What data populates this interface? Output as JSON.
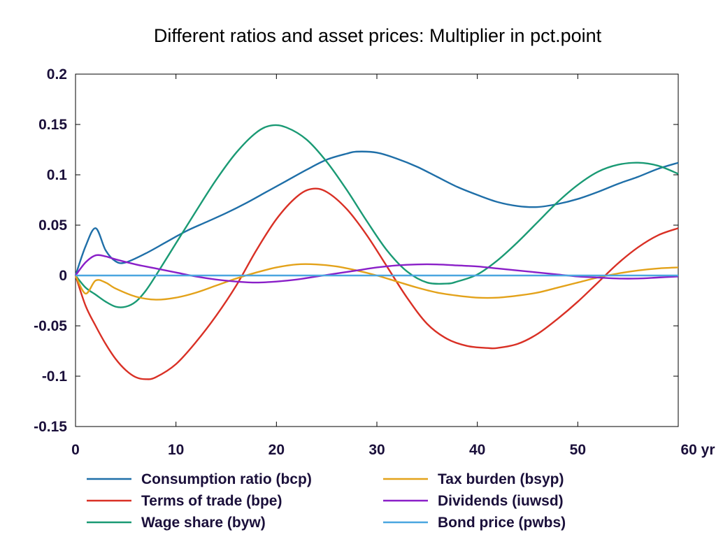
{
  "chart_data": {
    "type": "line",
    "title": "Different ratios and asset prices: Multiplier in pct.point",
    "xlabel": "",
    "ylabel": "",
    "xlim": [
      0,
      60
    ],
    "ylim": [
      -0.15,
      0.2
    ],
    "x_ticks": [
      0,
      10,
      20,
      30,
      40,
      50,
      60
    ],
    "x_tick_labels": [
      "0",
      "10",
      "20",
      "30",
      "40",
      "50",
      "60 yr"
    ],
    "y_ticks": [
      -0.15,
      -0.1,
      -0.05,
      0,
      0.05,
      0.1,
      0.15,
      0.2
    ],
    "y_tick_labels": [
      "-0.15",
      "-0.1",
      "-0.05",
      "0",
      "0.05",
      "0.1",
      "0.15",
      "0.2"
    ],
    "grid": false,
    "legend_position": "bottom",
    "series": [
      {
        "name": "Consumption ratio (bcp)",
        "color": "#1f6fa8",
        "x": [
          0,
          1,
          2,
          3,
          4,
          5,
          7,
          9,
          11,
          13,
          15,
          17,
          19,
          21,
          23,
          25,
          27,
          28,
          30,
          32,
          34,
          36,
          38,
          40,
          42,
          44,
          46,
          48,
          50,
          52,
          54,
          56,
          58,
          60
        ],
        "y": [
          0,
          0.029,
          0.047,
          0.025,
          0.014,
          0.013,
          0.022,
          0.033,
          0.044,
          0.053,
          0.062,
          0.072,
          0.083,
          0.094,
          0.105,
          0.115,
          0.121,
          0.123,
          0.122,
          0.116,
          0.108,
          0.098,
          0.088,
          0.08,
          0.073,
          0.069,
          0.068,
          0.071,
          0.076,
          0.083,
          0.091,
          0.098,
          0.106,
          0.112
        ]
      },
      {
        "name": "Terms of trade (bpe)",
        "color": "#d93025",
        "x": [
          0,
          1,
          2,
          3,
          4,
          5,
          6,
          7,
          8,
          10,
          12,
          14,
          16,
          18,
          20,
          22,
          23.5,
          25,
          27,
          29,
          31,
          33,
          35,
          37,
          39,
          41,
          42,
          44,
          46,
          48,
          50,
          52,
          54,
          56,
          58,
          60
        ],
        "y": [
          0,
          -0.03,
          -0.05,
          -0.068,
          -0.083,
          -0.094,
          -0.101,
          -0.103,
          -0.101,
          -0.088,
          -0.066,
          -0.04,
          -0.01,
          0.025,
          0.056,
          0.078,
          0.086,
          0.083,
          0.066,
          0.04,
          0.009,
          -0.022,
          -0.048,
          -0.063,
          -0.07,
          -0.072,
          -0.072,
          -0.068,
          -0.058,
          -0.043,
          -0.026,
          -0.007,
          0.012,
          0.028,
          0.04,
          0.047
        ]
      },
      {
        "name": "Wage share (byw)",
        "color": "#1a9a74",
        "x": [
          0,
          1,
          2,
          3,
          4,
          5,
          6,
          7,
          8,
          10,
          12,
          14,
          16,
          18,
          19.5,
          21,
          23,
          25,
          27,
          29,
          31,
          33,
          35,
          37,
          38,
          40,
          42,
          44,
          46,
          48,
          50,
          52,
          54,
          56,
          58,
          60
        ],
        "y": [
          0,
          -0.012,
          -0.019,
          -0.026,
          -0.031,
          -0.031,
          -0.026,
          -0.015,
          0.0,
          0.032,
          0.064,
          0.095,
          0.122,
          0.142,
          0.149,
          0.147,
          0.135,
          0.113,
          0.085,
          0.054,
          0.025,
          0.004,
          -0.007,
          -0.008,
          -0.006,
          0.001,
          0.015,
          0.033,
          0.053,
          0.073,
          0.09,
          0.103,
          0.11,
          0.112,
          0.109,
          0.101
        ]
      },
      {
        "name": "Tax burden (bsyp)",
        "color": "#e3a21a",
        "x": [
          0,
          1,
          2,
          3,
          4,
          6,
          8,
          10,
          12,
          14,
          16,
          18,
          20,
          22,
          24,
          26,
          28,
          30,
          32,
          34,
          36,
          38,
          40,
          42,
          44,
          46,
          48,
          50,
          52,
          54,
          56,
          58,
          60
        ],
        "y": [
          0,
          -0.018,
          -0.005,
          -0.007,
          -0.013,
          -0.021,
          -0.024,
          -0.022,
          -0.017,
          -0.01,
          -0.003,
          0.003,
          0.008,
          0.011,
          0.011,
          0.009,
          0.005,
          0.0,
          -0.006,
          -0.012,
          -0.017,
          -0.02,
          -0.022,
          -0.022,
          -0.02,
          -0.017,
          -0.012,
          -0.007,
          -0.002,
          0.002,
          0.005,
          0.007,
          0.008
        ]
      },
      {
        "name": "Dividends (iuwsd)",
        "color": "#8a1fc8",
        "x": [
          0,
          1,
          2,
          3,
          4,
          6,
          8,
          10,
          12,
          14,
          16,
          18,
          20,
          22,
          24,
          26,
          28,
          30,
          32,
          34,
          36,
          38,
          40,
          42,
          44,
          46,
          48,
          50,
          52,
          54,
          56,
          58,
          60
        ],
        "y": [
          0,
          0.013,
          0.02,
          0.019,
          0.016,
          0.011,
          0.007,
          0.003,
          -0.001,
          -0.004,
          -0.006,
          -0.007,
          -0.006,
          -0.004,
          -0.001,
          0.002,
          0.005,
          0.008,
          0.01,
          0.011,
          0.011,
          0.01,
          0.009,
          0.007,
          0.005,
          0.003,
          0.001,
          -0.001,
          -0.002,
          -0.003,
          -0.003,
          -0.002,
          -0.001
        ]
      },
      {
        "name": "Bond price (pwbs)",
        "color": "#4aa6e0",
        "x": [
          0,
          60
        ],
        "y": [
          0,
          0
        ]
      }
    ]
  }
}
